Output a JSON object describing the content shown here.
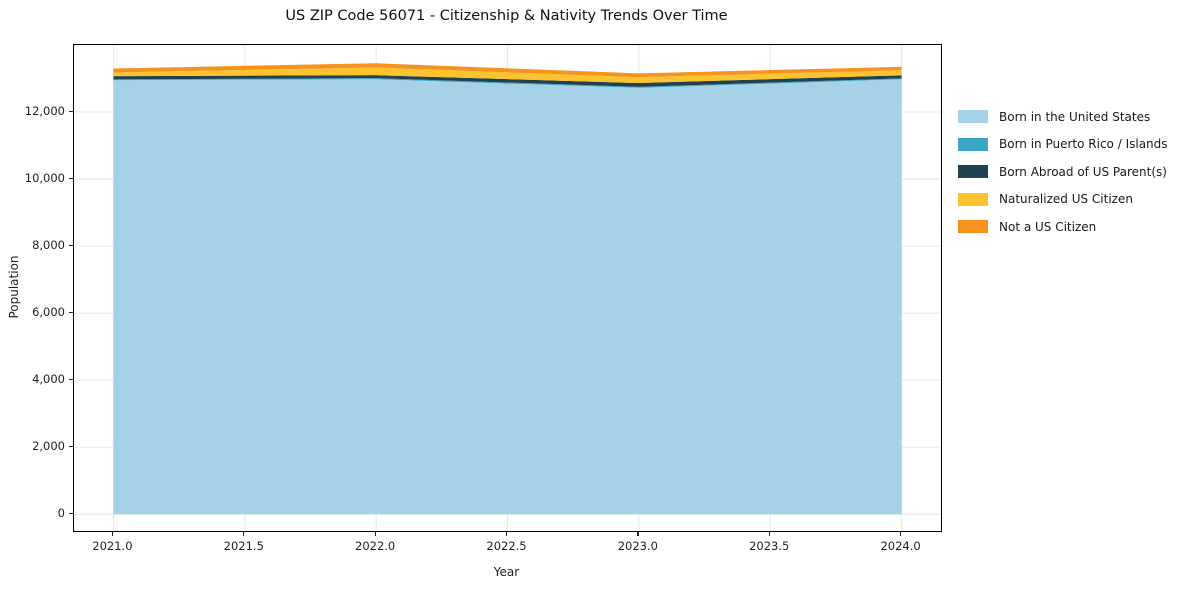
{
  "title": "US ZIP Code 56071 - Citizenship & Nativity Trends Over Time",
  "chart_data": {
    "type": "area",
    "stacked": true,
    "title": "US ZIP Code 56071 - Citizenship & Nativity Trends Over Time",
    "xlabel": "Year",
    "ylabel": "Population",
    "x": [
      2021,
      2022,
      2023,
      2024
    ],
    "series": [
      {
        "name": "Born in the United States",
        "color": "#a6d2e7",
        "values": [
          12950,
          12980,
          12720,
          12980
        ]
      },
      {
        "name": "Born in Puerto Rico / Islands",
        "color": "#3ba7c5",
        "values": [
          25,
          30,
          30,
          25
        ]
      },
      {
        "name": "Born Abroad of US Parent(s)",
        "color": "#20414f",
        "values": [
          95,
          90,
          115,
          90
        ]
      },
      {
        "name": "Naturalized US Citizen",
        "color": "#fdc32f",
        "values": [
          110,
          230,
          175,
          155
        ]
      },
      {
        "name": "Not a US Citizen",
        "color": "#f6921e",
        "values": [
          120,
          125,
          115,
          100
        ]
      }
    ],
    "x_ticks": [
      2021.0,
      2021.5,
      2022.0,
      2022.5,
      2023.0,
      2023.5,
      2024.0
    ],
    "x_tick_labels": [
      "2021.0",
      "2021.5",
      "2022.0",
      "2022.5",
      "2023.0",
      "2023.5",
      "2024.0"
    ],
    "y_ticks": [
      0,
      2000,
      4000,
      6000,
      8000,
      10000,
      12000
    ],
    "y_tick_labels": [
      "0",
      "2,000",
      "4,000",
      "6,000",
      "8,000",
      "10,000",
      "12,000"
    ],
    "xlim": [
      2020.85,
      2024.15
    ],
    "ylim": [
      -500,
      14000
    ],
    "grid": true,
    "legend_position": "right-outside",
    "frame_color": "#000000",
    "grid_color": "#e7e7e7"
  }
}
